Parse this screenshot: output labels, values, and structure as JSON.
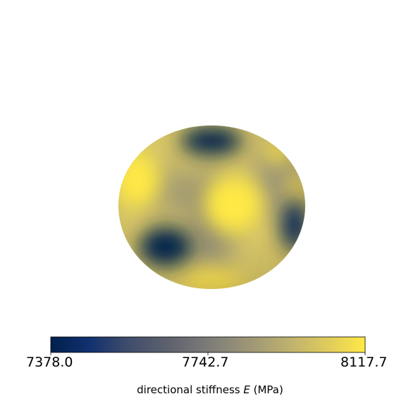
{
  "figure": {
    "colormap": "cividis",
    "colors": {
      "low": "#00204c",
      "mid": "#7c7b78",
      "high": "#ffe945"
    }
  },
  "colorbar": {
    "min_label": "7378.0",
    "mid_label": "7742.7",
    "max_label": "8117.7",
    "label_prefix": "directional stiffness ",
    "label_var": "E",
    "label_unit": " (MPa)"
  }
}
